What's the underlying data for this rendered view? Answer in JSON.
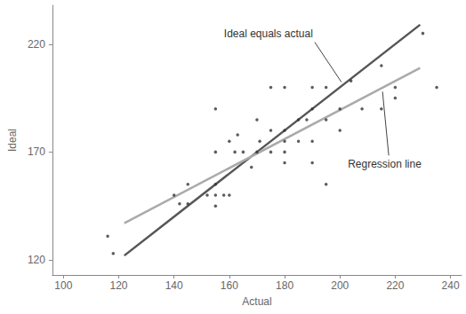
{
  "chart_data": {
    "type": "scatter",
    "xlabel": "Actual",
    "ylabel": "Ideal",
    "xlim": [
      96,
      244
    ],
    "ylim": [
      113,
      238
    ],
    "xticks": [
      100,
      120,
      140,
      160,
      180,
      200,
      220,
      240
    ],
    "yticks": [
      120,
      170,
      220
    ],
    "grid": false,
    "points": {
      "color": "#333333",
      "marker": "circle",
      "x": [
        116,
        118,
        140,
        142,
        145,
        145,
        152,
        155,
        155,
        155,
        155,
        155,
        158,
        160,
        160,
        163,
        162,
        165,
        168,
        171,
        170,
        170,
        175,
        175,
        175,
        180,
        180,
        180,
        180,
        180,
        185,
        185,
        188,
        190,
        190,
        190,
        190,
        195,
        195,
        195,
        200,
        200,
        204,
        208,
        215,
        215,
        220,
        220,
        230,
        235
      ],
      "y": [
        131,
        123,
        150,
        146,
        155,
        146,
        150,
        155,
        190,
        170,
        150,
        145,
        150,
        150,
        175,
        178,
        170,
        170,
        163,
        175,
        185,
        170,
        200,
        180,
        170,
        180,
        175,
        170,
        165,
        200,
        175,
        185,
        185,
        200,
        190,
        175,
        165,
        200,
        185,
        155,
        180,
        190,
        203,
        190,
        190,
        210,
        195,
        200,
        225,
        200
      ]
    },
    "series": [
      {
        "name": "Ideal equals actual",
        "type": "line",
        "color": "#555555",
        "line_style": "solid",
        "x": [
          122,
          229
        ],
        "values": [
          122,
          229
        ]
      },
      {
        "name": "Regression line",
        "type": "line",
        "color": "#aaaaaa",
        "line_style": "solid",
        "x": [
          122,
          229
        ],
        "values": [
          137,
          209
        ]
      }
    ]
  }
}
